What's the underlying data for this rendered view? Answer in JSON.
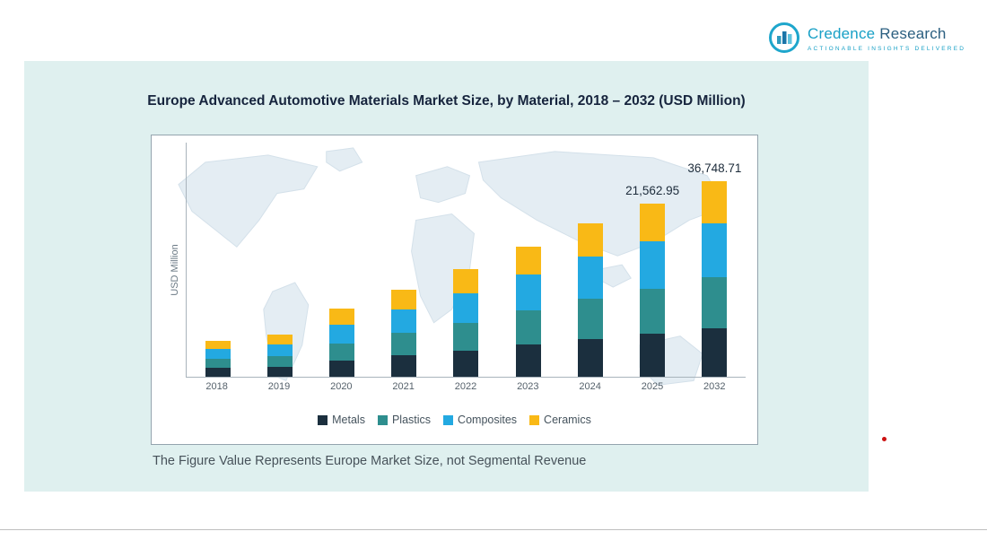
{
  "page": {
    "caption": "The Figure Value Represents Europe Market Size, not Segmental Revenue"
  },
  "logo": {
    "name_part1": "Credence",
    "name_part2": " Research",
    "tagline": "Actionable Insights Delivered"
  },
  "chart_data": {
    "type": "bar",
    "stacked": true,
    "title": "Europe Advanced Automotive Materials Market Size, by Material, 2018 – 2032 (USD Million)",
    "xlabel": "",
    "ylabel": "USD Million",
    "grid": false,
    "legend_position": "bottom",
    "categories": [
      "2018",
      "2019",
      "2020",
      "2021",
      "2022",
      "2023",
      "2024",
      "2025",
      "2032"
    ],
    "series": [
      {
        "name": "Metals",
        "color": "#1b2f3e",
        "values": [
          1100,
          1250,
          2000,
          2700,
          3250,
          4000,
          4700,
          5350,
          6050
        ]
      },
      {
        "name": "Plastics",
        "color": "#2e8e8e",
        "values": [
          1100,
          1350,
          2100,
          2800,
          3450,
          4250,
          5000,
          5600,
          6350
        ]
      },
      {
        "name": "Composites",
        "color": "#23a9e1",
        "values": [
          1250,
          1450,
          2350,
          2900,
          3700,
          4450,
          5250,
          5900,
          6700
        ]
      },
      {
        "name": "Ceramics",
        "color": "#f9b916",
        "values": [
          1000,
          1250,
          2000,
          2450,
          3000,
          3550,
          4150,
          4700,
          5250
        ]
      }
    ],
    "annotations": [
      {
        "category": "2025",
        "label": "21,562.95"
      },
      {
        "category": "2032",
        "label": "36,748.71"
      }
    ],
    "labeled_totals": {
      "2025": 21562.95,
      "2032": 36748.71
    }
  }
}
